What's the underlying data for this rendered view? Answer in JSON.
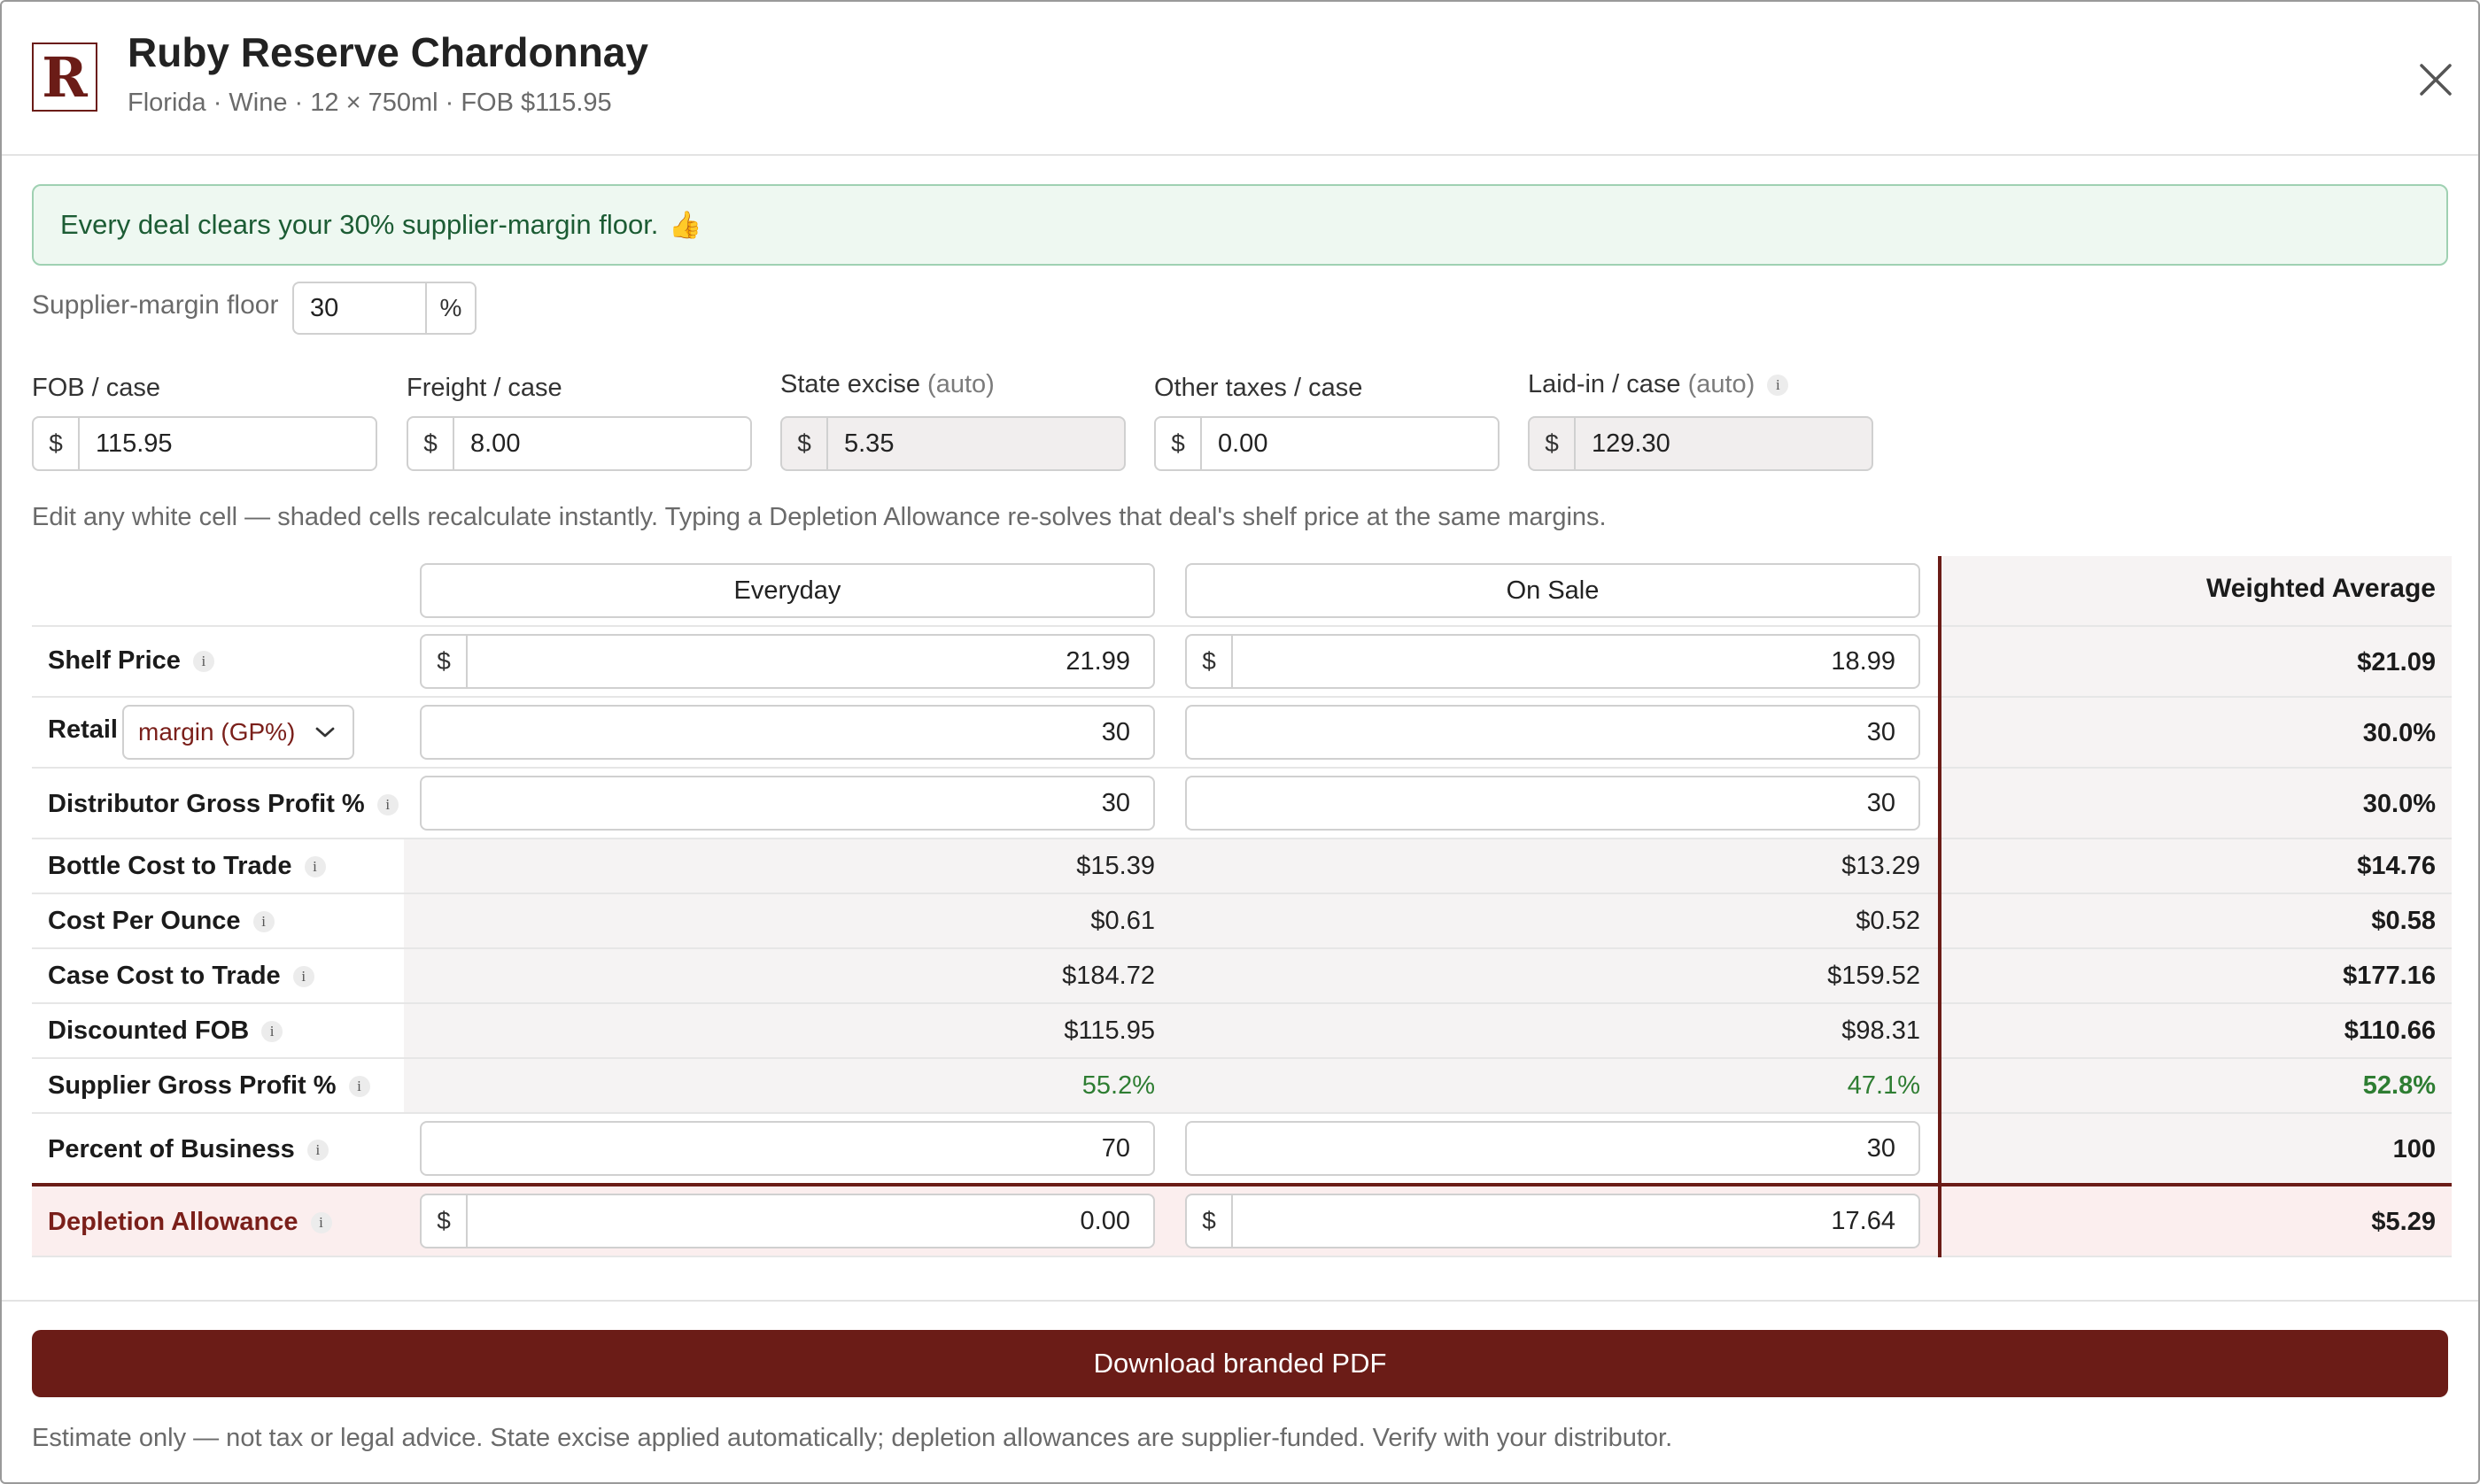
{
  "header": {
    "logo_letter": "R",
    "title": "Ruby Reserve Chardonnay",
    "subtitle": "Florida · Wine · 12 × 750ml · FOB $115.95"
  },
  "banner": {
    "message": "Every deal clears your 30% supplier-margin floor.",
    "emoji": "👍"
  },
  "floor": {
    "label": "Supplier-margin floor",
    "value": "30",
    "suffix": "%"
  },
  "fields": {
    "fob": {
      "label": "FOB / case",
      "currency": "$",
      "value": "115.95"
    },
    "freight": {
      "label": "Freight / case",
      "currency": "$",
      "value": "8.00"
    },
    "excise": {
      "label": "State excise",
      "auto": "(auto)",
      "currency": "$",
      "value": "5.35"
    },
    "other": {
      "label": "Other taxes / case",
      "currency": "$",
      "value": "0.00"
    },
    "laidin": {
      "label": "Laid-in / case",
      "auto": "(auto)",
      "currency": "$",
      "value": "129.30"
    }
  },
  "hint": "Edit any white cell — shaded cells recalculate instantly. Typing a Depletion Allowance re-solves that deal's shelf price at the same margins.",
  "table": {
    "columns": {
      "everyday": "Everyday",
      "on_sale": "On Sale",
      "weighted": "Weighted Average"
    },
    "info_glyph": "i",
    "currency": "$",
    "shelf_price": {
      "label": "Shelf Price",
      "everyday": "21.99",
      "on_sale": "18.99",
      "weighted": "$21.09"
    },
    "retail": {
      "label": "Retail",
      "mode": "margin (GP%)",
      "everyday": "30",
      "on_sale": "30",
      "weighted": "30.0%"
    },
    "dist_gp": {
      "label": "Distributor Gross Profit %",
      "everyday": "30",
      "on_sale": "30",
      "weighted": "30.0%"
    },
    "bottle_cost": {
      "label": "Bottle Cost to Trade",
      "everyday": "$15.39",
      "on_sale": "$13.29",
      "weighted": "$14.76"
    },
    "cost_per_oz": {
      "label": "Cost Per Ounce",
      "everyday": "$0.61",
      "on_sale": "$0.52",
      "weighted": "$0.58"
    },
    "case_cost": {
      "label": "Case Cost to Trade",
      "everyday": "$184.72",
      "on_sale": "$159.52",
      "weighted": "$177.16"
    },
    "disc_fob": {
      "label": "Discounted FOB",
      "everyday": "$115.95",
      "on_sale": "$98.31",
      "weighted": "$110.66"
    },
    "supplier_gp": {
      "label": "Supplier Gross Profit %",
      "everyday": "55.2%",
      "on_sale": "47.1%",
      "weighted": "52.8%"
    },
    "pct_business": {
      "label": "Percent of Business",
      "everyday": "70",
      "on_sale": "30",
      "weighted": "100"
    },
    "depletion": {
      "label": "Depletion Allowance",
      "everyday": "0.00",
      "on_sale": "17.64",
      "weighted": "$5.29"
    }
  },
  "footer": {
    "button": "Download branded PDF",
    "disclaimer": "Estimate only — not tax or legal advice. State excise applied automatically; depletion allowances are supplier-funded. Verify with your distributor."
  },
  "colors": {
    "brand": "#6b1c17",
    "success_text": "#1c5c34",
    "success_bg": "#eef8f1",
    "positive": "#2e7d32"
  },
  "icons": {
    "close": "close-icon",
    "dropdown": "chevron-down-icon",
    "info": "info-icon",
    "thumbs_up": "thumbs-up-icon"
  }
}
